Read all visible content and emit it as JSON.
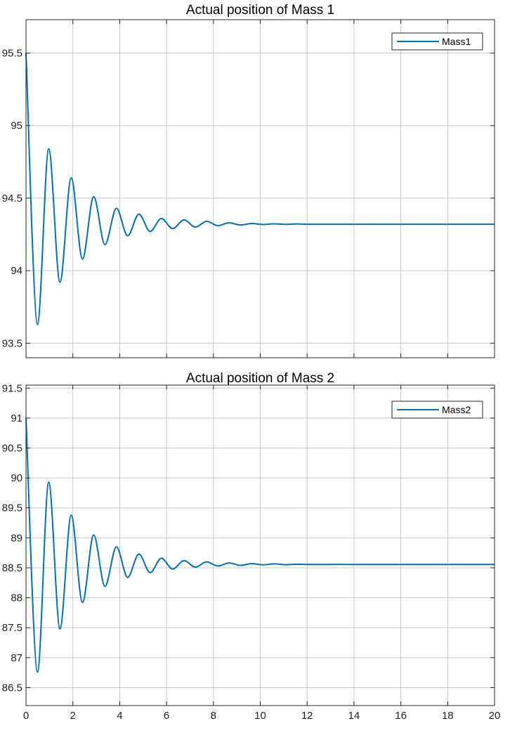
{
  "chart_data": [
    {
      "type": "line",
      "title": "Actual position of Mass 1",
      "xlabel": "",
      "ylabel": "",
      "xlim": [
        0,
        20
      ],
      "ylim": [
        93.4,
        95.73
      ],
      "xticks": [
        0,
        2,
        4,
        6,
        8,
        10,
        12,
        14,
        16,
        18,
        20
      ],
      "yticks": [
        93.5,
        94,
        94.5,
        95,
        95.5
      ],
      "xtick_labels_visible": false,
      "grid": true,
      "legend_position": "top-right",
      "series": [
        {
          "name": "Mass1",
          "color": "#0072BD",
          "x": [
            0,
            0.49,
            0.97,
            1.45,
            1.93,
            2.41,
            2.89,
            3.37,
            3.86,
            4.34,
            4.82,
            5.3,
            5.78,
            6.26,
            6.75,
            7.23,
            7.71,
            8.19,
            8.67,
            9.15,
            9.64,
            10.12,
            10.6,
            11.08,
            11.56,
            12.04,
            13,
            14,
            16,
            18,
            20
          ],
          "y": [
            95.5,
            93.63,
            94.84,
            93.92,
            94.64,
            94.08,
            94.51,
            94.18,
            94.43,
            94.24,
            94.39,
            94.27,
            94.36,
            94.29,
            94.35,
            94.3,
            94.34,
            94.31,
            94.33,
            94.315,
            94.325,
            94.318,
            94.323,
            94.319,
            94.322,
            94.32,
            94.32,
            94.32,
            94.32,
            94.32,
            94.32
          ]
        }
      ]
    },
    {
      "type": "line",
      "title": "Actual position of Mass 2",
      "xlabel": "",
      "ylabel": "",
      "xlim": [
        0,
        20
      ],
      "ylim": [
        86.2,
        91.55
      ],
      "xticks": [
        0,
        2,
        4,
        6,
        8,
        10,
        12,
        14,
        16,
        18,
        20
      ],
      "yticks": [
        86.5,
        87,
        87.5,
        88,
        88.5,
        89,
        89.5,
        90,
        90.5,
        91,
        91.5
      ],
      "xtick_labels_visible": true,
      "grid": true,
      "legend_position": "top-right",
      "series": [
        {
          "name": "Mass2",
          "color": "#0072BD",
          "x": [
            0,
            0.49,
            0.97,
            1.45,
            1.93,
            2.41,
            2.89,
            3.37,
            3.86,
            4.34,
            4.82,
            5.3,
            5.78,
            6.26,
            6.75,
            7.23,
            7.71,
            8.19,
            8.67,
            9.15,
            9.64,
            10.12,
            10.6,
            11.08,
            11.56,
            12.04,
            13,
            14,
            16,
            18,
            20
          ],
          "y": [
            91.0,
            86.76,
            89.93,
            87.48,
            89.38,
            87.92,
            89.05,
            88.19,
            88.85,
            88.34,
            88.73,
            88.42,
            88.66,
            88.48,
            88.62,
            88.51,
            88.6,
            88.53,
            88.58,
            88.54,
            88.57,
            88.55,
            88.565,
            88.552,
            88.56,
            88.555,
            88.556,
            88.556,
            88.556,
            88.556,
            88.556
          ]
        }
      ]
    }
  ]
}
